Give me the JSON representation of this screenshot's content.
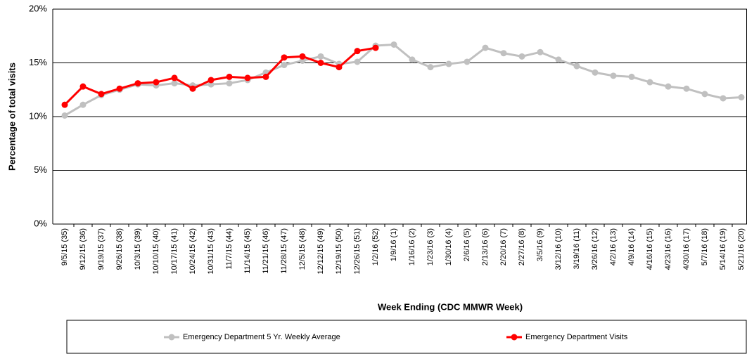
{
  "chart_data": {
    "type": "line",
    "x_label": "Week Ending (CDC MMWR Week)",
    "y_label": "Percentage of total visits",
    "categories": [
      "9/5/15 (35)",
      "9/12/15 (36)",
      "9/19/15 (37)",
      "9/26/15 (38)",
      "10/3/15 (39)",
      "10/10/15 (40)",
      "10/17/15 (41)",
      "10/24/15 (42)",
      "10/31/15 (43)",
      "11/7/15 (44)",
      "11/14/15 (45)",
      "11/21/15 (46)",
      "11/28/15 (47)",
      "12/5/15 (48)",
      "12/12/15 (49)",
      "12/19/15 (50)",
      "12/26/15 (51)",
      "1/2/16 (52)",
      "1/9/16 (1)",
      "1/16/16 (2)",
      "1/23/16 (3)",
      "1/30/16 (4)",
      "2/6/16 (5)",
      "2/13/16 (6)",
      "2/20/16 (7)",
      "2/27/16 (8)",
      "3/5/16 (9)",
      "3/12/16 (10)",
      "3/19/16 (11)",
      "3/26/16 (12)",
      "4/2/16 (13)",
      "4/9/16 (14)",
      "4/16/16 (15)",
      "4/23/16 (16)",
      "4/30/16 (17)",
      "5/7/16 (18)",
      "5/14/16 (19)",
      "5/21/16 (20)"
    ],
    "series": [
      {
        "name": "Emergency Department 5 Yr. Weekly Average",
        "color": "#c0c0c0",
        "values": [
          10.1,
          11.1,
          12.0,
          12.5,
          13.0,
          12.9,
          13.1,
          12.9,
          13.0,
          13.1,
          13.4,
          14.1,
          14.8,
          15.2,
          15.6,
          14.9,
          15.1,
          16.6,
          16.7,
          15.3,
          14.6,
          14.9,
          15.1,
          16.4,
          15.9,
          15.6,
          16.0,
          15.3,
          14.7,
          14.1,
          13.8,
          13.7,
          13.2,
          12.8,
          12.6,
          12.1,
          11.7,
          11.8
        ]
      },
      {
        "name": "Emergency Department Visits",
        "color": "#ff0000",
        "values": [
          11.1,
          12.8,
          12.1,
          12.6,
          13.1,
          13.2,
          13.6,
          12.6,
          13.4,
          13.7,
          13.6,
          13.7,
          15.5,
          15.6,
          15.0,
          14.6,
          16.1,
          16.4,
          null,
          null,
          null,
          null,
          null,
          null,
          null,
          null,
          null,
          null,
          null,
          null,
          null,
          null,
          null,
          null,
          null,
          null,
          null,
          null
        ]
      }
    ],
    "ylim": [
      0,
      20
    ],
    "yticks": [
      {
        "value": 0,
        "label": "0%"
      },
      {
        "value": 5,
        "label": "5%"
      },
      {
        "value": 10,
        "label": "10%"
      },
      {
        "value": 15,
        "label": "15%"
      },
      {
        "value": 20,
        "label": "20%"
      }
    ],
    "grid": true
  }
}
